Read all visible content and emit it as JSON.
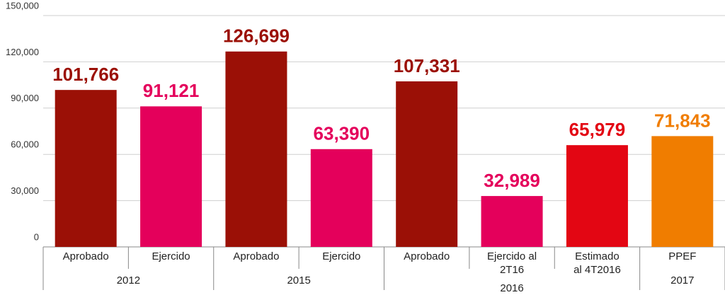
{
  "chart_data": {
    "type": "bar",
    "categories": [
      "Aprobado",
      "Ejercido",
      "Aprobado",
      "Ejercido",
      "Aprobado",
      "Ejercido al 2T16",
      "Estimado al 4T2016",
      "PPEF"
    ],
    "groups": [
      "2012",
      "2012",
      "2015",
      "2015",
      "2016",
      "2016",
      "2016",
      "2017"
    ],
    "values": [
      101766,
      91121,
      126699,
      63390,
      107331,
      32989,
      65979,
      71843
    ],
    "value_labels": [
      "101,766",
      "91,121",
      "126,699",
      "63,390",
      "107,331",
      "32,989",
      "65,979",
      "71,843"
    ],
    "colors": [
      "#9b1006",
      "#e4005b",
      "#9b1006",
      "#e4005b",
      "#9b1006",
      "#e4005b",
      "#e30613",
      "#f07d00"
    ],
    "ylim": [
      0,
      150000
    ],
    "yticks": [
      0,
      {
        "value": 30000,
        "label": "30,000"
      },
      {
        "value": 60000,
        "label": "60,000"
      },
      {
        "value": 90000,
        "label": "90,000"
      },
      {
        "value": 120000,
        "label": "120,000"
      },
      {
        "value": 150000,
        "label": "150,000"
      }
    ],
    "grid": true
  }
}
